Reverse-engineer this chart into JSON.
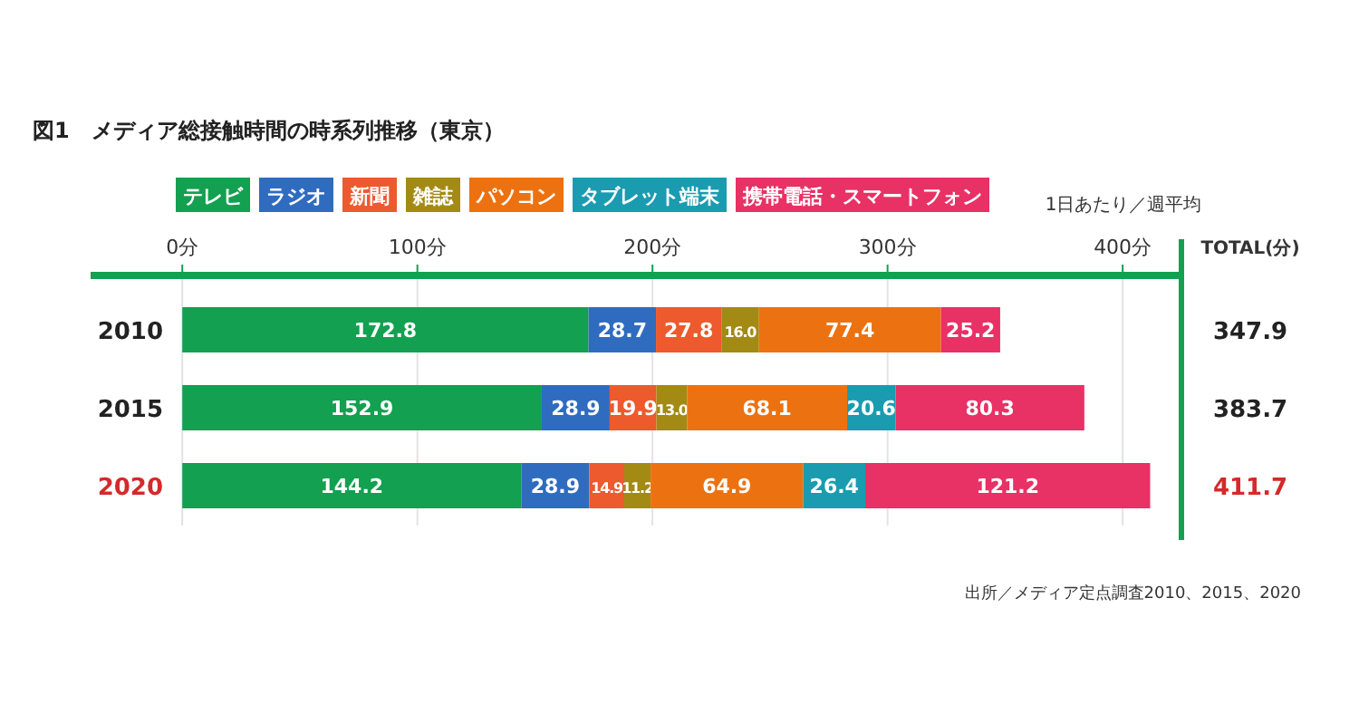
{
  "chart_data": {
    "type": "bar",
    "orientation": "horizontal",
    "stacked": true,
    "title": "図1　メディア総接触時間の時系列推移（東京）",
    "categories": [
      "2010",
      "2015",
      "2020"
    ],
    "series": [
      {
        "name": "テレビ",
        "color": "#13a050",
        "values": [
          172.8,
          152.9,
          144.2
        ],
        "value_labels": [
          "172.8",
          "152.9",
          "144.2"
        ]
      },
      {
        "name": "ラジオ",
        "color": "#2f6cbf",
        "values": [
          28.7,
          28.9,
          28.9
        ],
        "value_labels": [
          "28.7",
          "28.9",
          "28.9"
        ]
      },
      {
        "name": "新聞",
        "color": "#ec5a2e",
        "values": [
          27.8,
          19.9,
          14.9
        ],
        "value_labels": [
          "27.8",
          "19.9",
          "14.9"
        ]
      },
      {
        "name": "雑誌",
        "color": "#a28a14",
        "values": [
          16.0,
          13.0,
          11.2
        ],
        "value_labels": [
          "16.0",
          "13.0",
          "11.2"
        ]
      },
      {
        "name": "パソコン",
        "color": "#ec7211",
        "values": [
          77.4,
          68.1,
          64.9
        ],
        "value_labels": [
          "77.4",
          "68.1",
          "64.9"
        ]
      },
      {
        "name": "タブレット端末",
        "color": "#1a9bb0",
        "values": [
          null,
          20.6,
          26.4
        ],
        "value_labels": [
          null,
          "20.6",
          "26.4"
        ]
      },
      {
        "name": "携帯電話・スマートフォン",
        "color": "#e83165",
        "values": [
          25.2,
          80.3,
          121.2
        ],
        "value_labels": [
          "25.2",
          "80.3",
          "121.2"
        ]
      }
    ],
    "xlim": [
      -39,
      425
    ],
    "xticks": [
      {
        "value": 0,
        "label": "0分"
      },
      {
        "value": 100,
        "label": "100分"
      },
      {
        "value": 200,
        "label": "200分"
      },
      {
        "value": 300,
        "label": "300分"
      },
      {
        "value": 400,
        "label": "400分"
      }
    ],
    "grid": "x",
    "legend": "top left",
    "annotations": [
      "1日あたり／週平均",
      "TOTAL(分)",
      "347.9",
      "383.7",
      "411.7",
      "出所／メディア定点調査2010、2015、2020"
    ]
  }
}
